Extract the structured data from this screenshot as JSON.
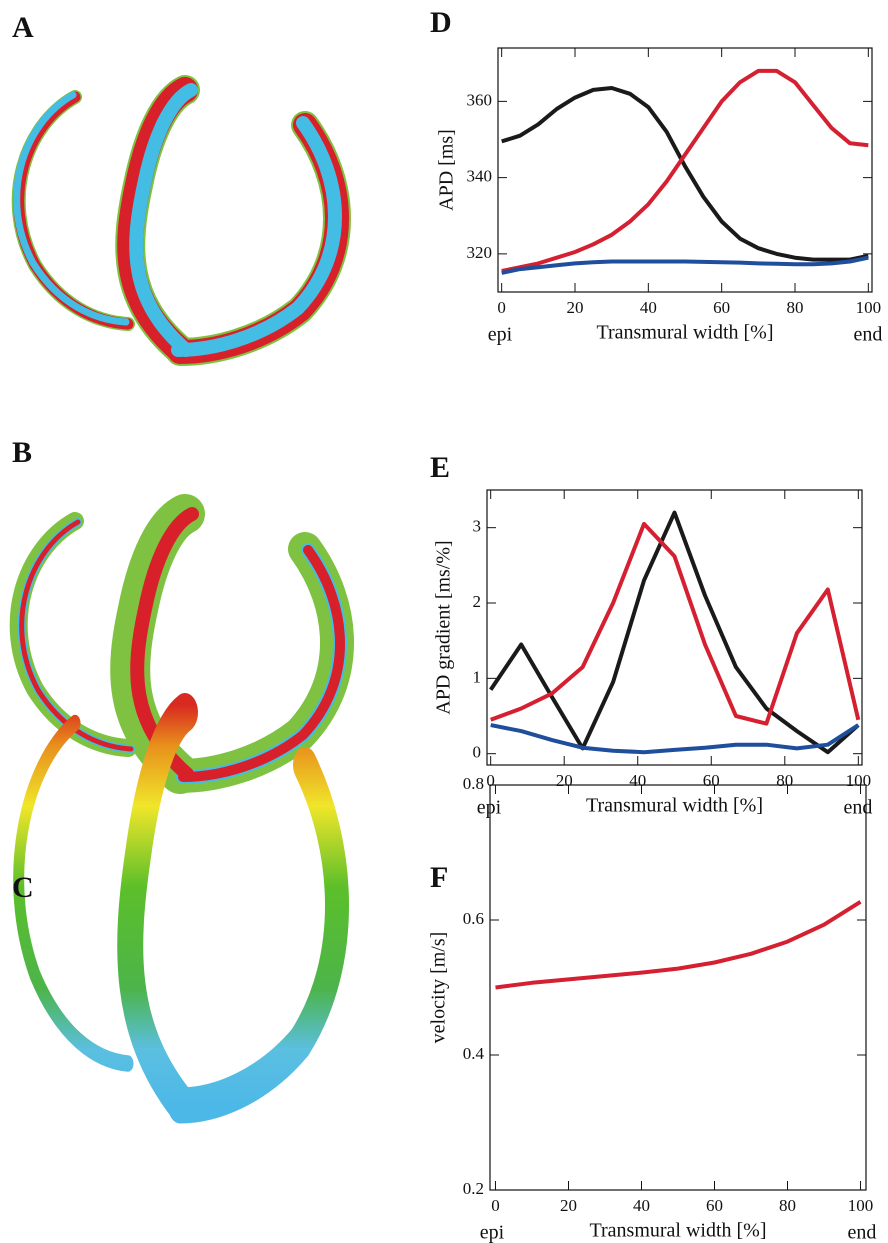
{
  "images": [
    {
      "label": "A"
    },
    {
      "label": "B"
    },
    {
      "label": "C"
    }
  ],
  "chart_data": [
    {
      "type": "line",
      "panel_label": "D",
      "ylabel": "APD [ms]",
      "xlabel": "Transmural width [%]",
      "x_start_label": "epi",
      "x_end_label": "end",
      "x": [
        0,
        5,
        10,
        15,
        20,
        25,
        30,
        35,
        40,
        45,
        50,
        55,
        60,
        65,
        70,
        75,
        80,
        85,
        90,
        95,
        100
      ],
      "xlim": [
        -1,
        101
      ],
      "xticks": [
        0,
        20,
        40,
        60,
        80,
        100
      ],
      "ylim": [
        310,
        374
      ],
      "yticks": [
        320,
        340,
        360
      ],
      "series": [
        {
          "color": "#1a1a1a",
          "values": [
            349.5,
            351,
            354,
            358,
            361,
            363,
            363.5,
            362,
            358.5,
            352,
            343,
            335,
            328.5,
            324,
            321.5,
            320,
            319,
            318.5,
            318.5,
            318.5,
            319.5
          ]
        },
        {
          "color": "#d42030",
          "values": [
            315.5,
            316.5,
            317.5,
            319,
            320.5,
            322.5,
            325,
            328.5,
            333,
            339,
            346,
            353,
            360,
            365,
            368,
            368,
            365,
            359,
            353,
            349,
            348.5
          ]
        },
        {
          "color": "#1f4e9c",
          "values": [
            315,
            316,
            316.5,
            317,
            317.5,
            317.8,
            318,
            318,
            318,
            318,
            318,
            317.9,
            317.8,
            317.7,
            317.5,
            317.4,
            317.3,
            317.3,
            317.5,
            318,
            319
          ]
        }
      ]
    },
    {
      "type": "line",
      "panel_label": "E",
      "ylabel": "APD gradient [ms/%]",
      "xlabel": "Transmural width [%]",
      "x_start_label": "epi",
      "x_end_label": "end",
      "x": [
        0,
        8.3,
        16.7,
        25,
        33.3,
        41.7,
        50,
        58.3,
        66.7,
        75,
        83.3,
        91.7,
        100
      ],
      "xlim": [
        -1,
        101
      ],
      "xticks": [
        0,
        20,
        40,
        60,
        80,
        100
      ],
      "ylim": [
        -0.15,
        3.5
      ],
      "yticks": [
        0,
        1,
        2,
        3
      ],
      "series": [
        {
          "color": "#1a1a1a",
          "values": [
            0.85,
            1.45,
            0.75,
            0.07,
            0.95,
            2.3,
            3.2,
            2.1,
            1.15,
            0.6,
            0.3,
            0.02,
            0.38
          ]
        },
        {
          "color": "#d42030",
          "values": [
            0.45,
            0.6,
            0.8,
            1.15,
            2.0,
            3.05,
            2.62,
            1.45,
            0.5,
            0.4,
            1.6,
            2.18,
            0.45
          ]
        },
        {
          "color": "#1f4e9c",
          "values": [
            0.38,
            0.3,
            0.18,
            0.08,
            0.04,
            0.02,
            0.05,
            0.08,
            0.12,
            0.12,
            0.07,
            0.12,
            0.38
          ]
        }
      ]
    },
    {
      "type": "line",
      "panel_label": "F",
      "ylabel": "velocity [m/s]",
      "xlabel": "Transmural width [%]",
      "x_start_label": "epi",
      "x_end_label": "end",
      "x": [
        0,
        10,
        20,
        30,
        40,
        50,
        60,
        70,
        80,
        90,
        100
      ],
      "xlim": [
        -1.5,
        101.5
      ],
      "xticks": [
        0,
        20,
        40,
        60,
        80,
        100
      ],
      "ylim": [
        0.2,
        0.8
      ],
      "yticks": [
        0.2,
        0.4,
        0.6,
        0.8
      ],
      "series": [
        {
          "color": "#d42030",
          "values": [
            0.5,
            0.507,
            0.512,
            0.517,
            0.522,
            0.528,
            0.537,
            0.55,
            0.568,
            0.593,
            0.627
          ]
        }
      ]
    }
  ]
}
